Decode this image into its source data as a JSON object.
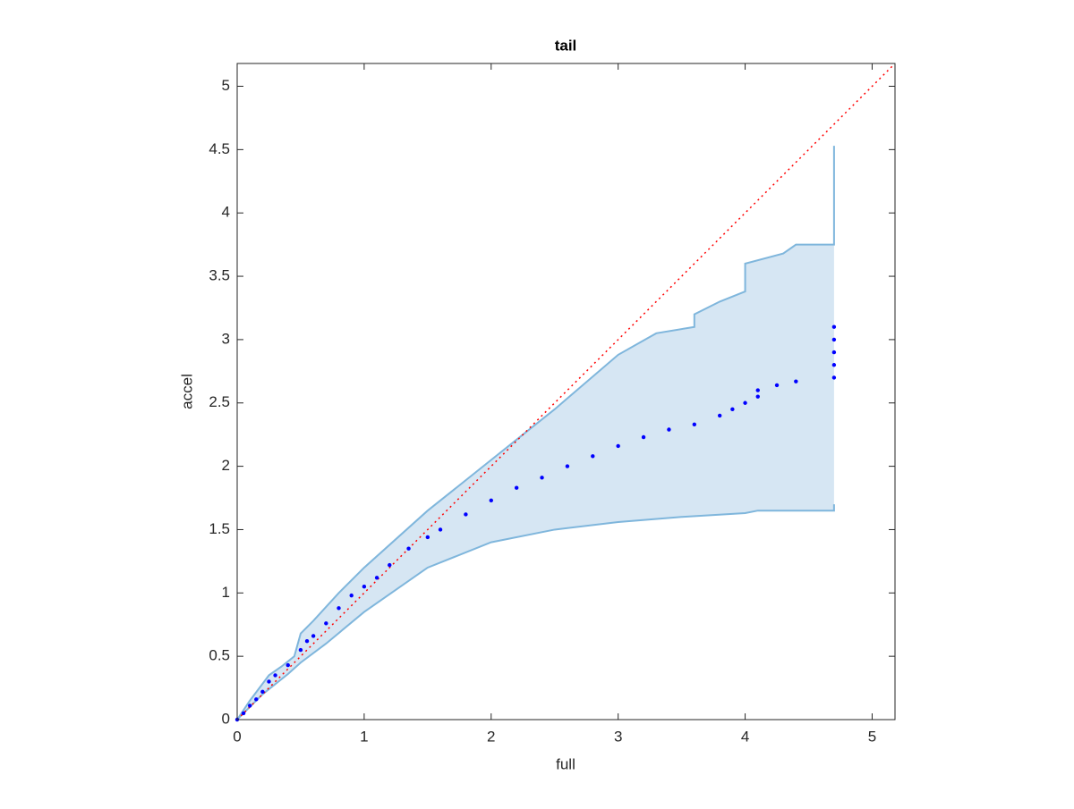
{
  "chart_data": {
    "type": "scatter",
    "title": "tail",
    "xlabel": "full",
    "ylabel": "accel",
    "xlim": [
      0,
      5.18
    ],
    "ylim": [
      0,
      5.18
    ],
    "xticks": [
      0,
      1,
      2,
      3,
      4,
      5
    ],
    "yticks": [
      0,
      0.5,
      1,
      1.5,
      2,
      2.5,
      3,
      3.5,
      4,
      4.5,
      5
    ],
    "grid": false,
    "points": {
      "color": "#0000ff",
      "x": [
        0,
        0.05,
        0.1,
        0.15,
        0.2,
        0.25,
        0.3,
        0.4,
        0.5,
        0.55,
        0.6,
        0.7,
        0.8,
        0.9,
        1.0,
        1.1,
        1.2,
        1.35,
        1.5,
        1.6,
        1.8,
        2.0,
        2.2,
        2.4,
        2.6,
        2.8,
        3.0,
        3.2,
        3.4,
        3.6,
        3.8,
        3.9,
        4.0,
        4.1,
        4.1,
        4.25,
        4.4,
        4.7,
        4.7,
        4.7,
        4.7,
        4.7
      ],
      "y": [
        0,
        0.05,
        0.11,
        0.16,
        0.22,
        0.3,
        0.35,
        0.43,
        0.55,
        0.62,
        0.66,
        0.76,
        0.88,
        0.98,
        1.05,
        1.12,
        1.22,
        1.35,
        1.44,
        1.5,
        1.62,
        1.73,
        1.83,
        1.91,
        2.0,
        2.08,
        2.16,
        2.23,
        2.29,
        2.33,
        2.4,
        2.45,
        2.5,
        2.55,
        2.6,
        2.64,
        2.67,
        2.7,
        2.8,
        2.9,
        3.0,
        3.1
      ]
    },
    "band": {
      "line_color": "#7fb6dc",
      "fill_color": "#d6e6f3",
      "x_upper": [
        0,
        0.1,
        0.25,
        0.35,
        0.45,
        0.5,
        0.6,
        0.8,
        1.0,
        1.5,
        2.0,
        2.5,
        3.0,
        3.3,
        3.6,
        3.6,
        3.8,
        4.0,
        4.0,
        4.3,
        4.4,
        4.7,
        4.7
      ],
      "upper": [
        0,
        0.15,
        0.35,
        0.42,
        0.5,
        0.68,
        0.78,
        1.0,
        1.2,
        1.65,
        2.05,
        2.45,
        2.88,
        3.05,
        3.1,
        3.2,
        3.3,
        3.38,
        3.6,
        3.68,
        3.75,
        3.75,
        4.53
      ],
      "x_lower": [
        0,
        0.1,
        0.2,
        0.3,
        0.4,
        0.5,
        0.7,
        1.0,
        1.5,
        2.0,
        2.5,
        3.0,
        3.5,
        4.0,
        4.1,
        4.7,
        4.7
      ],
      "lower": [
        0,
        0.1,
        0.2,
        0.28,
        0.36,
        0.45,
        0.6,
        0.85,
        1.2,
        1.4,
        1.5,
        1.56,
        1.6,
        1.63,
        1.65,
        1.65,
        1.7
      ]
    },
    "reference": {
      "color": "#ff0000",
      "x": [
        0,
        5.18
      ],
      "y": [
        0,
        5.18
      ]
    }
  }
}
